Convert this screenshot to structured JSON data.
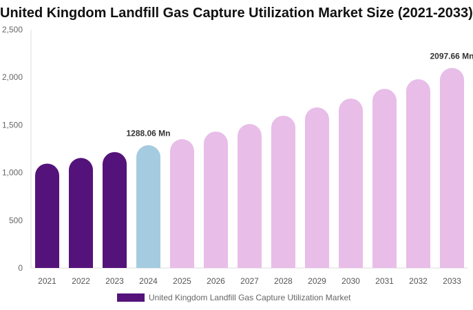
{
  "chart_data": {
    "type": "bar",
    "title": "United Kingdom Landfill Gas Capture Utilization Market Size (2021-2033)",
    "categories": [
      "2021",
      "2022",
      "2023",
      "2024",
      "2025",
      "2026",
      "2027",
      "2028",
      "2029",
      "2030",
      "2031",
      "2032",
      "2033"
    ],
    "series": [
      {
        "name": "United Kingdom Landfill Gas Capture Utilization Market",
        "values": [
          1095,
          1154,
          1216,
          1288.06,
          1351,
          1431,
          1510,
          1597,
          1684,
          1777,
          1879,
          1980,
          2097.66
        ]
      }
    ],
    "data_labels": [
      {
        "category": "2024",
        "text": "1288.06 Mn"
      },
      {
        "category": "2033",
        "text": "2097.66 Mn"
      }
    ],
    "ylim": [
      0,
      2500
    ],
    "yticks": [
      0,
      500,
      1000,
      1500,
      2000,
      2500
    ],
    "ytick_labels": [
      "0",
      "500",
      "1,000",
      "1,500",
      "2,000",
      "2,500"
    ],
    "grid": false,
    "legend_position": "bottom",
    "colors": {
      "historical": "#54137a",
      "base_year": "#a5cbe0",
      "forecast": "#e8bde8"
    }
  }
}
